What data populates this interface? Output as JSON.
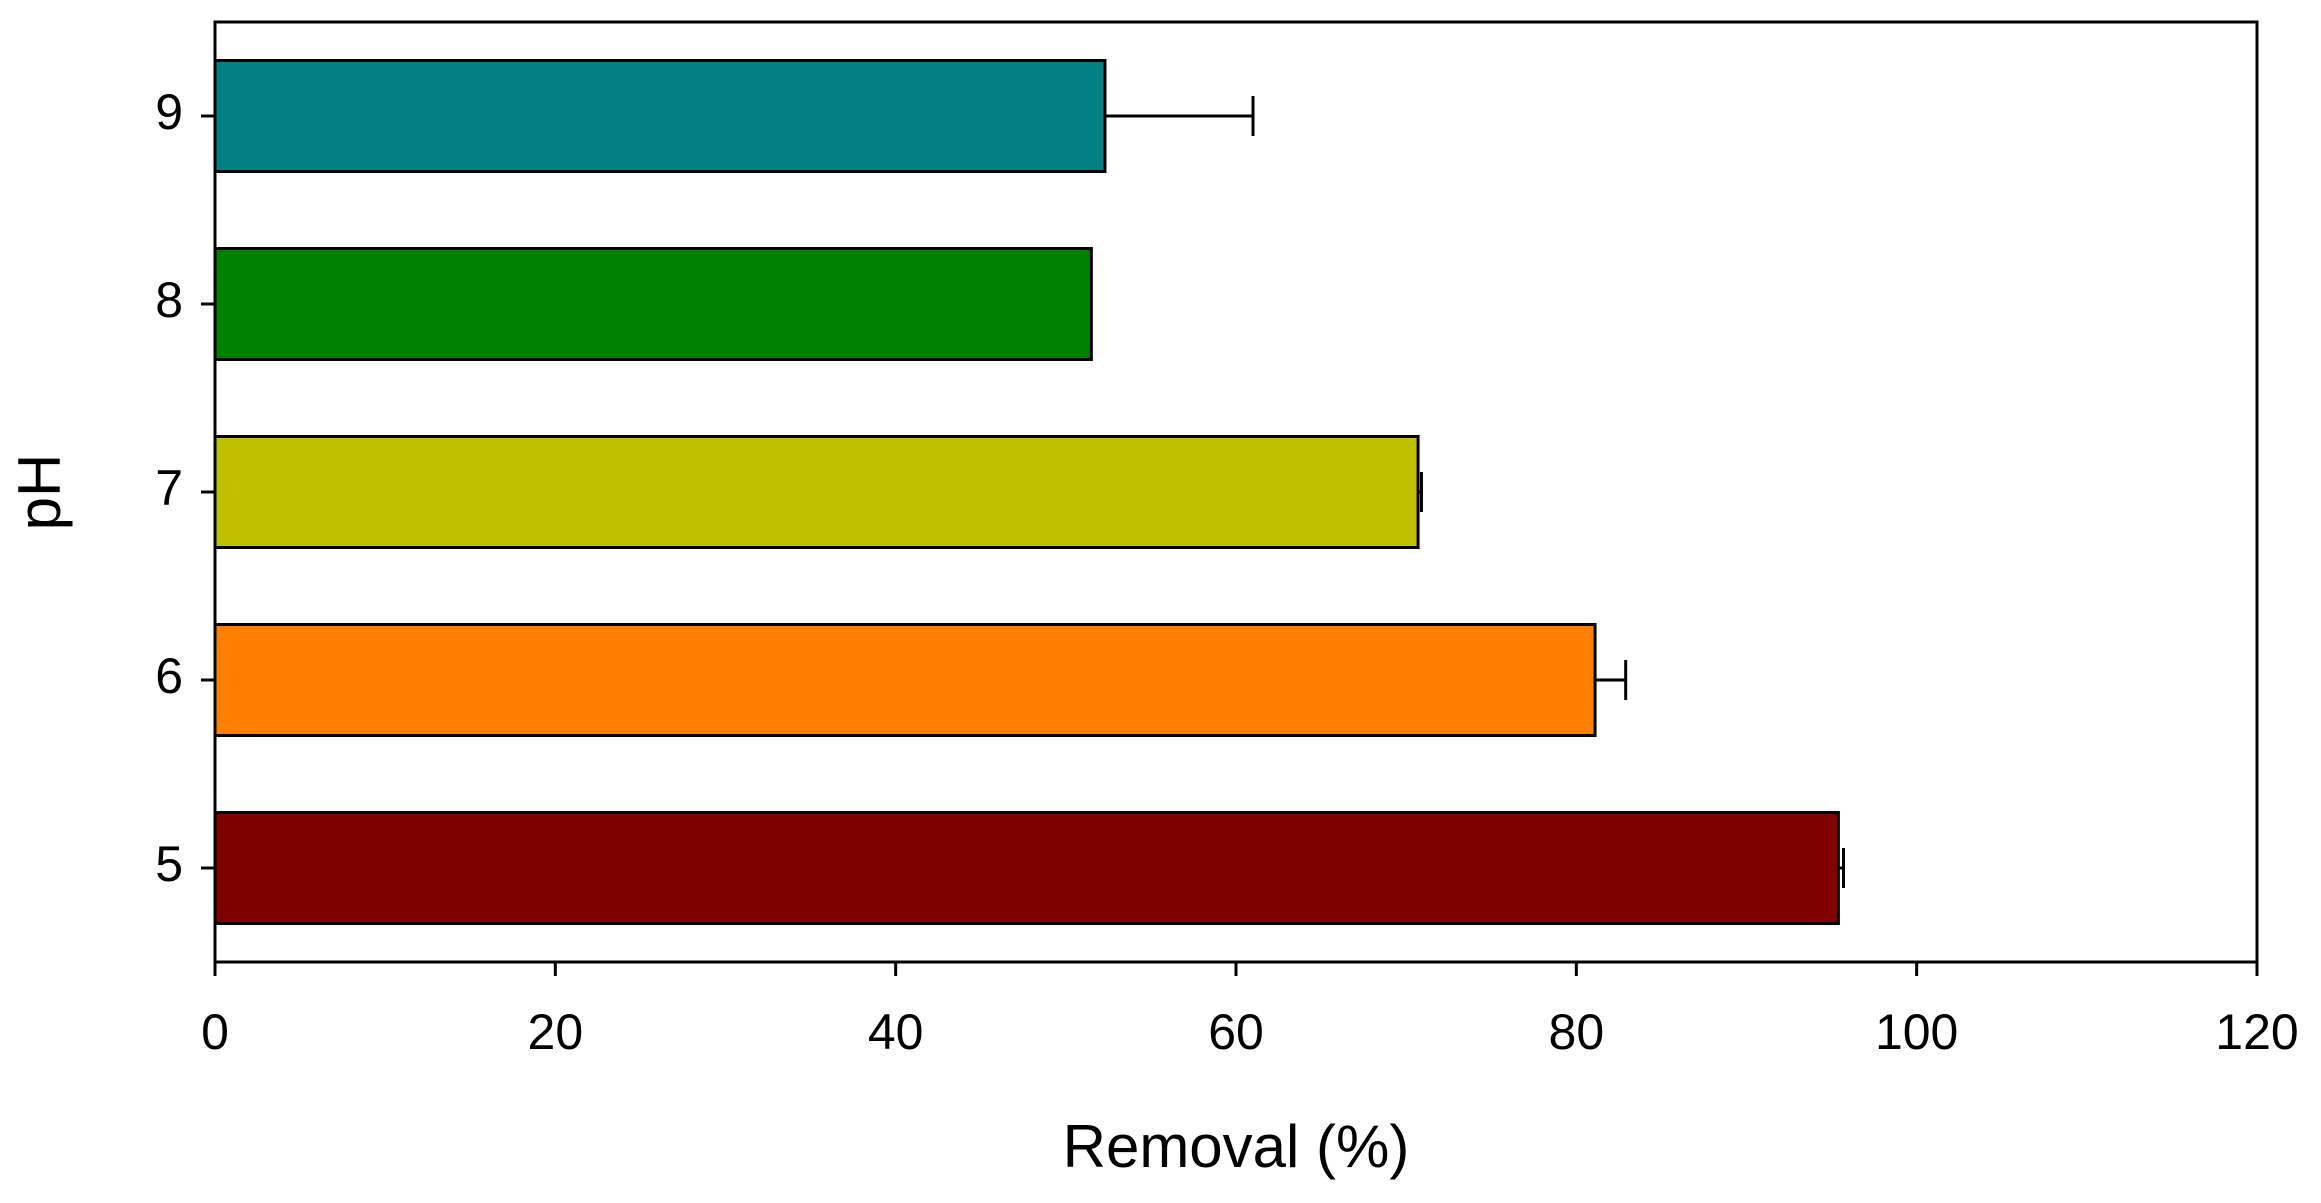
{
  "chart_data": {
    "type": "hbar",
    "xlabel": "Removal (%)",
    "ylabel": "pH",
    "categories": [
      "5",
      "6",
      "7",
      "8",
      "9"
    ],
    "values": [
      95.4,
      81.1,
      70.7,
      51.5,
      52.3
    ],
    "errors": [
      0.3,
      1.8,
      0.2,
      0,
      8.7
    ],
    "colors": [
      "#800000",
      "#ff8000",
      "#c0c000",
      "#008000",
      "#008080"
    ],
    "xlim": [
      0,
      120
    ],
    "xticks": [
      0,
      20,
      40,
      60,
      80,
      100,
      120
    ]
  }
}
